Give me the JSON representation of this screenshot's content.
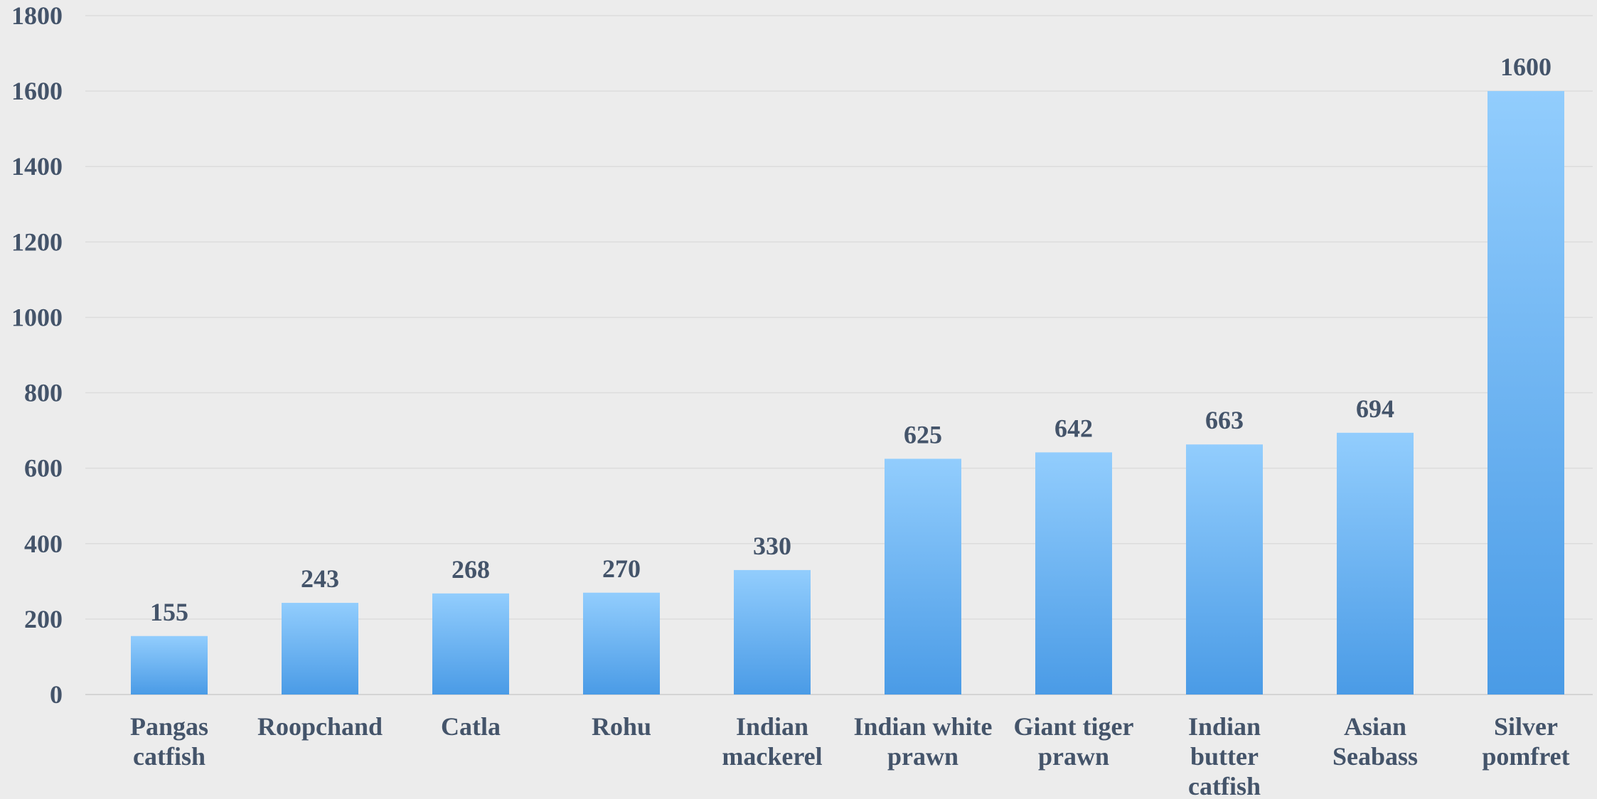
{
  "chart_data": {
    "type": "bar",
    "title": "",
    "xlabel": "",
    "ylabel": "",
    "ylim": [
      0,
      1800
    ],
    "yticks": [
      0,
      200,
      400,
      600,
      800,
      1000,
      1200,
      1400,
      1600,
      1800
    ],
    "grid": true,
    "legend": "none",
    "bar_color_top": "#92cdfd",
    "bar_color_bottom": "#4a9be6",
    "text_color": "#44546a",
    "categories": [
      [
        "Pangas",
        "catfish"
      ],
      [
        "Roopchand"
      ],
      [
        "Catla"
      ],
      [
        "Rohu"
      ],
      [
        "Indian",
        "mackerel"
      ],
      [
        "Indian white",
        "prawn"
      ],
      [
        "Giant tiger",
        "prawn"
      ],
      [
        "Indian",
        "butter",
        "catfish"
      ],
      [
        "Asian",
        "Seabass"
      ],
      [
        "Silver",
        "pomfret"
      ]
    ],
    "values": [
      155,
      243,
      268,
      270,
      330,
      625,
      642,
      663,
      694,
      1600
    ]
  }
}
